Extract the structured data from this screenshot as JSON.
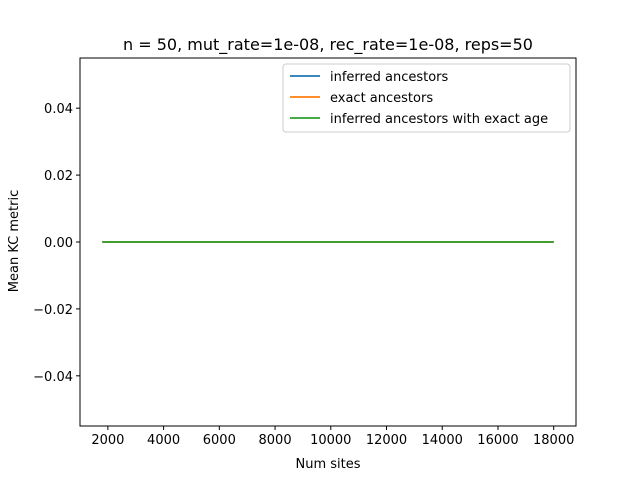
{
  "chart_data": {
    "type": "line",
    "title": "n = 50, mut_rate=1e-08, rec_rate=1e-08, reps=50",
    "xlabel": "Num sites",
    "ylabel": "Mean KC metric",
    "xlim": [
      1000,
      18800
    ],
    "ylim": [
      -0.055,
      0.055
    ],
    "xticks": [
      2000,
      4000,
      6000,
      8000,
      10000,
      12000,
      14000,
      16000,
      18000
    ],
    "yticks": [
      -0.04,
      -0.02,
      0.0,
      0.02,
      0.04
    ],
    "ytick_labels": [
      "−0.04",
      "−0.02",
      "0.00",
      "0.02",
      "0.04"
    ],
    "legend_position": "top-right",
    "series": [
      {
        "name": "inferred ancestors",
        "color": "#1f77b4",
        "x": [
          1800,
          18000
        ],
        "values": [
          0,
          0
        ]
      },
      {
        "name": "exact ancestors",
        "color": "#ff7f0e",
        "x": [
          1800,
          18000
        ],
        "values": [
          0,
          0
        ]
      },
      {
        "name": "inferred ancestors with exact age",
        "color": "#2ca02c",
        "x": [
          1800,
          18000
        ],
        "values": [
          0,
          0
        ]
      }
    ]
  }
}
